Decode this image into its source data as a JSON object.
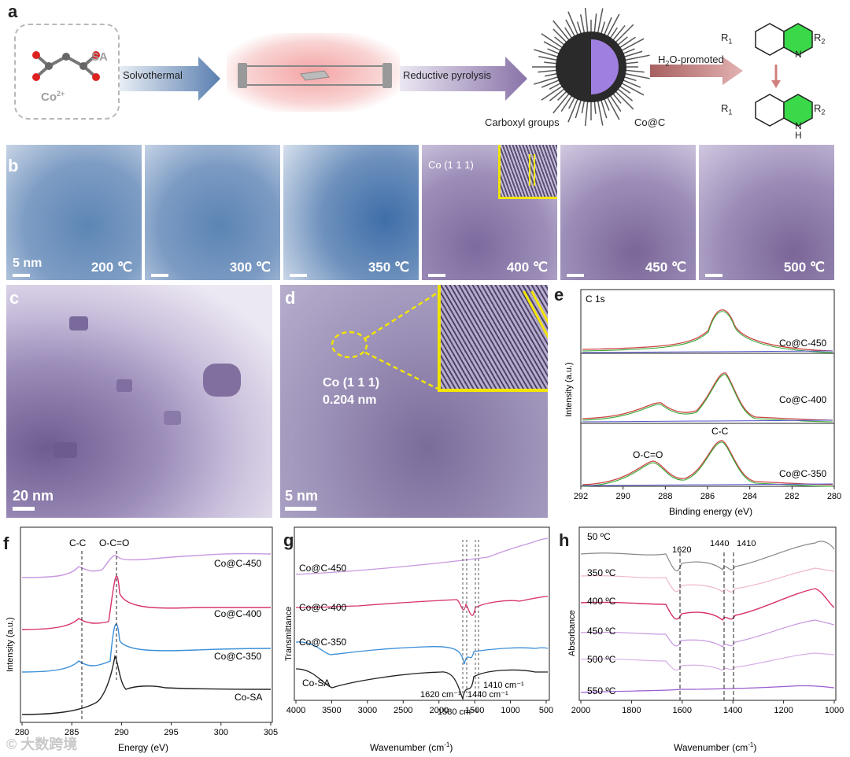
{
  "panel_a": {
    "letter": "a",
    "sa_label": "SA",
    "co_label": "Co",
    "co_sup": "2+",
    "step1": "Solvothermal",
    "step2": "Reductive pyrolysis",
    "step3_main": "H",
    "step3_sub": "2",
    "step3_rest": "O-promoted",
    "carboxyl": "Carboxyl groups",
    "product": "Co@C",
    "r1": "R",
    "r1_sub": "1",
    "r2": "R",
    "r2_sub": "2",
    "n_label": "N",
    "nh_n": "N",
    "nh_h": "H"
  },
  "panel_b": {
    "letter": "b",
    "scale": "5 nm",
    "images": [
      {
        "temp": "200 ℃"
      },
      {
        "temp": "300 ℃"
      },
      {
        "temp": "350 ℃"
      },
      {
        "temp": "400 ℃",
        "inset": "Co (1 1 1)"
      },
      {
        "temp": "450 ℃"
      },
      {
        "temp": "500 ℃"
      }
    ]
  },
  "panel_c": {
    "letter": "c",
    "scale": "20 nm"
  },
  "panel_d": {
    "letter": "d",
    "scale": "5 nm",
    "plane": "Co (1 1 1)",
    "spacing": "0.204 nm"
  },
  "panel_e": {
    "letter": "e",
    "title": "C 1s",
    "xlabel": "Binding energy (eV)",
    "ylabel": "Intensity (a.u.)",
    "xticks": [
      "292",
      "290",
      "288",
      "286",
      "284",
      "282",
      "280"
    ],
    "labels": [
      "Co@C-450",
      "Co@C-400",
      "Co@C-350"
    ],
    "peak_cc": "C-C",
    "peak_oco": "O-C=O"
  },
  "panel_f": {
    "letter": "f",
    "xlabel": "Energy (eV)",
    "ylabel": "Intensity (a.u.)",
    "xticks": [
      "280",
      "285",
      "290",
      "295",
      "300",
      "305"
    ],
    "labels": [
      "Co@C-450",
      "Co@C-400",
      "Co@C-350",
      "Co-SA"
    ],
    "peak_cc": "C-C",
    "peak_oco": "O-C=O"
  },
  "panel_g": {
    "letter": "g",
    "xlabel": "Wavenumber (cm",
    "xlabel_sup": "-1",
    "xlabel_end": ")",
    "ylabel": "Transmittance",
    "xticks": [
      "4000",
      "3500",
      "3000",
      "2500",
      "2000",
      "1500",
      "1000",
      "500"
    ],
    "labels": [
      "Co@C-450",
      "Co@C-400",
      "Co@C-350",
      "Co-SA"
    ],
    "peaks": [
      "1620 cm⁻¹",
      "1580 cm⁻¹",
      "1440 cm⁻¹",
      "1410 cm⁻¹"
    ]
  },
  "panel_h": {
    "letter": "h",
    "xlabel": "Wavenumber (cm",
    "xlabel_sup": "-1",
    "xlabel_end": ")",
    "ylabel": "Absorbance",
    "xticks": [
      "2000",
      "1800",
      "1600",
      "1400",
      "1200",
      "1000"
    ],
    "labels": [
      "50 ºC",
      "350 ºC",
      "400 ºC",
      "450 ºC",
      "500 ºC",
      "550 ºC"
    ],
    "peaks": [
      "1620",
      "1440",
      "1410"
    ]
  },
  "watermark": "大数跨境",
  "colors": {
    "blue_tem": "#6d8db8",
    "purple_tem": "#8b7aa8",
    "black": "#222222",
    "pink": "#d7326e",
    "blue": "#3b8fd9",
    "violet": "#b487d8",
    "green_ring": "#39d94a"
  }
}
